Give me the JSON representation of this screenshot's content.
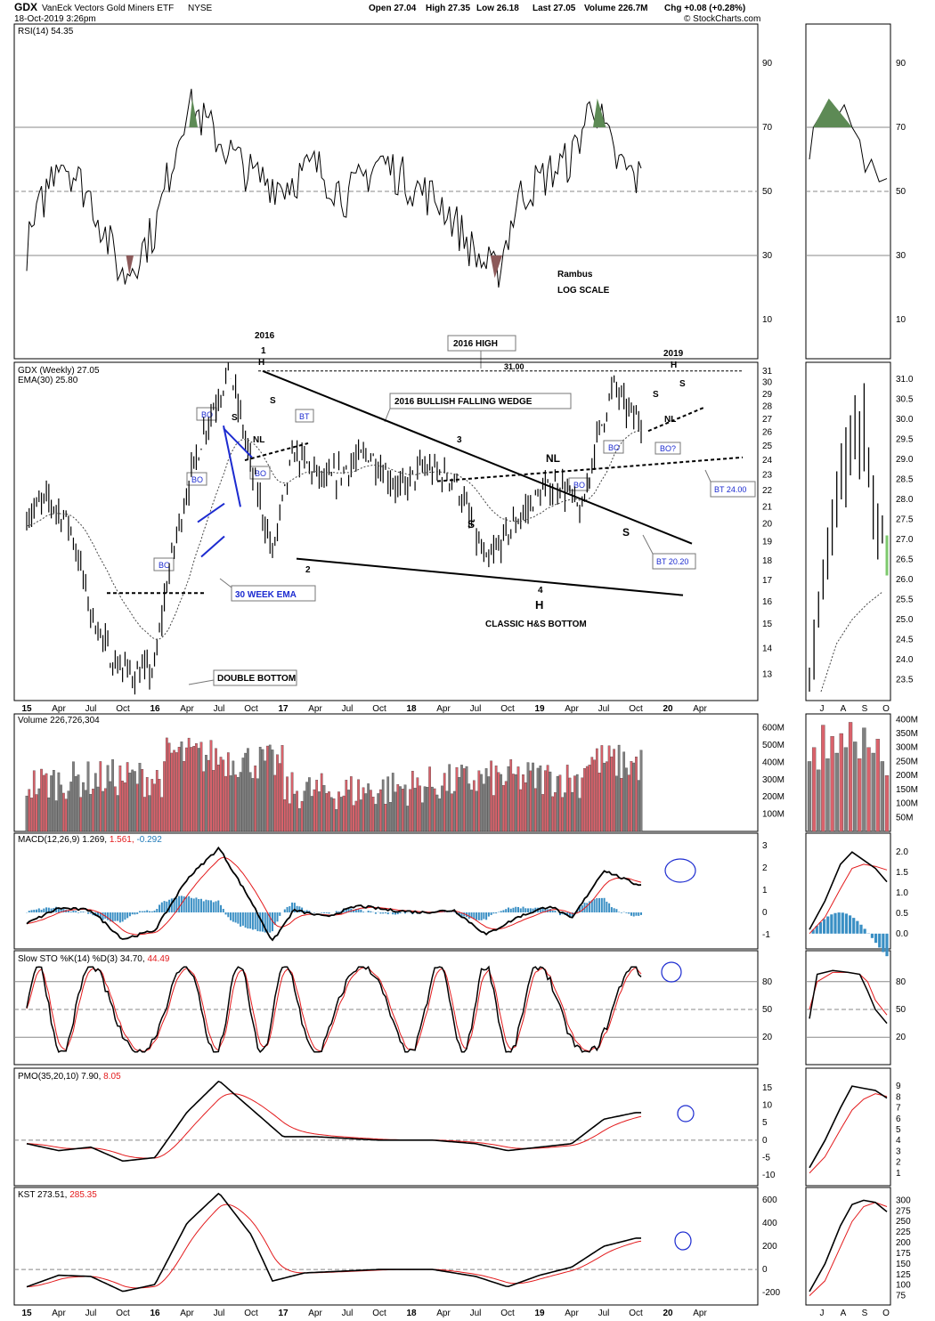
{
  "header": {
    "symbol": "GDX",
    "name": "VanEck Vectors Gold Miners ETF",
    "exchange": "NYSE",
    "date": "18-Oct-2019 3:26pm",
    "open": "Open 27.04",
    "high": "High 27.35",
    "low": "Low 26.18",
    "last": "Last 27.05",
    "volume": "Volume 226.7M",
    "chg": "Chg +0.08 (+0.28%)",
    "credit": "© StockCharts.com"
  },
  "colors": {
    "up_volume": "#d9626b",
    "down_volume": "#808080",
    "ema": "#444444",
    "signal": "#e31a1c",
    "hist": "#3a8fc4",
    "rsi_ob": "#5d8a55",
    "rsi_os": "#8c5a5a",
    "blue": "#1c2bd0"
  },
  "panels": {
    "rsi": {
      "legend": "RSI(14) 54.35",
      "ticks": [
        "90",
        "70",
        "50",
        "30",
        "10"
      ]
    },
    "price": {
      "legend": "GDX (Weekly) 27.05",
      "ema_legend": "EMA(30) 25.80",
      "ticks": [
        "31",
        "30",
        "29",
        "28",
        "27",
        "26",
        "25",
        "24",
        "23",
        "22",
        "21",
        "20",
        "19",
        "18",
        "17",
        "16",
        "15",
        "14",
        "13"
      ],
      "inset_ticks": [
        "31.0",
        "30.5",
        "30.0",
        "29.5",
        "29.0",
        "28.5",
        "28.0",
        "27.5",
        "27.0",
        "26.5",
        "26.0",
        "25.5",
        "25.0",
        "24.5",
        "24.0",
        "23.5"
      ]
    },
    "volume": {
      "legend": "Volume 226,726,304",
      "ticks": [
        "600M",
        "500M",
        "400M",
        "300M",
        "200M",
        "100M"
      ],
      "inset_ticks": [
        "400M",
        "350M",
        "300M",
        "250M",
        "200M",
        "150M",
        "100M",
        "50M"
      ]
    },
    "macd": {
      "legend_a": "MACD(12,26,9) 1.269,",
      "legend_b": "1.561,",
      "legend_c": "-0.292",
      "ticks": [
        "3",
        "2",
        "1",
        "0",
        "-1"
      ],
      "inset_ticks": [
        "2.0",
        "1.5",
        "1.0",
        "0.5",
        "0.0"
      ]
    },
    "sto": {
      "legend_a": "Slow STO %K(14) %D(3) 34.70,",
      "legend_b": "44.49",
      "ticks": [
        "80",
        "50",
        "20"
      ]
    },
    "pmo": {
      "legend_a": "PMO(35,20,10) 7.90,",
      "legend_b": "8.05",
      "ticks": [
        "15",
        "10",
        "5",
        "0",
        "-5",
        "-10"
      ],
      "inset_ticks": [
        "9",
        "8",
        "7",
        "6",
        "5",
        "4",
        "3",
        "2",
        "1"
      ]
    },
    "kst": {
      "legend_a": "KST 273.51,",
      "legend_b": "285.35",
      "ticks": [
        "600",
        "400",
        "200",
        "0",
        "-200"
      ],
      "inset_ticks": [
        "300",
        "275",
        "250",
        "225",
        "200",
        "175",
        "150",
        "125",
        "100",
        "75"
      ]
    }
  },
  "x_axis": {
    "labels": [
      "15",
      "Apr",
      "Jul",
      "Oct",
      "16",
      "Apr",
      "Jul",
      "Oct",
      "17",
      "Apr",
      "Jul",
      "Oct",
      "18",
      "Apr",
      "Jul",
      "Oct",
      "19",
      "Apr",
      "Jul",
      "Oct",
      "20",
      "Apr"
    ],
    "inset_labels": [
      "J",
      "A",
      "S",
      "O"
    ]
  },
  "annotations": {
    "rambus": "Rambus",
    "log_scale": "LOG SCALE",
    "year_2016": "2016",
    "p1": "1",
    "h_2016": "H",
    "high_2016": "2016 HIGH",
    "level_31": "31.00",
    "wedge": "2016 BULLISH FALLING WEDGE",
    "p3": "3",
    "nl_big": "NL",
    "s_left": "S",
    "s_right": "S",
    "year_2019": "2019",
    "h_2019": "H",
    "s2019a": "S",
    "s2019b": "S",
    "nl_2019": "NL",
    "bo_q": "BO?",
    "bt24": "BT 24.00",
    "bt20": "BT 20.20",
    "p2": "2",
    "p4": "4",
    "h_bottom": "H",
    "hs_bottom": "CLASSIC H&S BOTTOM",
    "ema30": "30 WEEK EMA",
    "dbl_bottom": "DOUBLE BOTTOM",
    "bo1": "BO",
    "bo2": "BO",
    "bo3": "BO",
    "bo4": "BO",
    "bo5": "BO",
    "bo6": "BO",
    "bt_2016": "BT",
    "s_2016a": "S",
    "s_2016b": "S",
    "nl_2016": "NL"
  },
  "chart_data": {
    "type": "bar",
    "title": "GDX VanEck Vectors Gold Miners ETF NYSE",
    "frequency": "Weekly",
    "scale": "log",
    "ylim": [
      12.3,
      31.3
    ],
    "x_range": [
      "2015-01",
      "2020-04"
    ],
    "price_key_points": [
      {
        "date": "2015-01",
        "close": 20.5
      },
      {
        "date": "2015-03",
        "close": 21.5
      },
      {
        "date": "2015-05",
        "close": 20.0
      },
      {
        "date": "2015-07",
        "close": 15.5
      },
      {
        "date": "2015-09",
        "close": 13.5
      },
      {
        "date": "2015-11",
        "close": 13.0
      },
      {
        "date": "2016-01",
        "close": 13.2
      },
      {
        "date": "2016-02",
        "close": 16.5
      },
      {
        "date": "2016-04",
        "close": 22.0
      },
      {
        "date": "2016-06",
        "close": 27.0
      },
      {
        "date": "2016-08",
        "close": 31.0
      },
      {
        "date": "2016-10",
        "close": 23.5
      },
      {
        "date": "2016-12",
        "close": 18.3
      },
      {
        "date": "2017-02",
        "close": 24.5
      },
      {
        "date": "2017-05",
        "close": 22.5
      },
      {
        "date": "2017-09",
        "close": 24.5
      },
      {
        "date": "2017-12",
        "close": 22.0
      },
      {
        "date": "2018-02",
        "close": 23.5
      },
      {
        "date": "2018-05",
        "close": 22.8
      },
      {
        "date": "2018-08",
        "close": 17.7
      },
      {
        "date": "2018-10",
        "close": 19.5
      },
      {
        "date": "2019-01",
        "close": 21.8
      },
      {
        "date": "2019-03",
        "close": 22.5
      },
      {
        "date": "2019-05",
        "close": 20.5
      },
      {
        "date": "2019-06",
        "close": 24.5
      },
      {
        "date": "2019-08",
        "close": 29.8
      },
      {
        "date": "2019-09",
        "close": 28.0
      },
      {
        "date": "2019-10",
        "close": 27.05
      }
    ],
    "ema30_last": 25.8,
    "levels": [
      {
        "label": "2016 HIGH",
        "value": 31.0
      },
      {
        "label": "BT 24.00",
        "value": 24.0
      },
      {
        "label": "BT 20.20",
        "value": 20.2
      }
    ],
    "indicators": {
      "RSI(14)": 54.35,
      "EMA(30)": 25.8,
      "Volume": 226726304,
      "MACD(12,26,9)": [
        1.269,
        1.561,
        -0.292
      ],
      "Slow STO %K(14) %D(3)": [
        34.7,
        44.49
      ],
      "PMO(35,20,10)": [
        7.9,
        8.05
      ],
      "KST": [
        273.51,
        285.35
      ]
    }
  }
}
